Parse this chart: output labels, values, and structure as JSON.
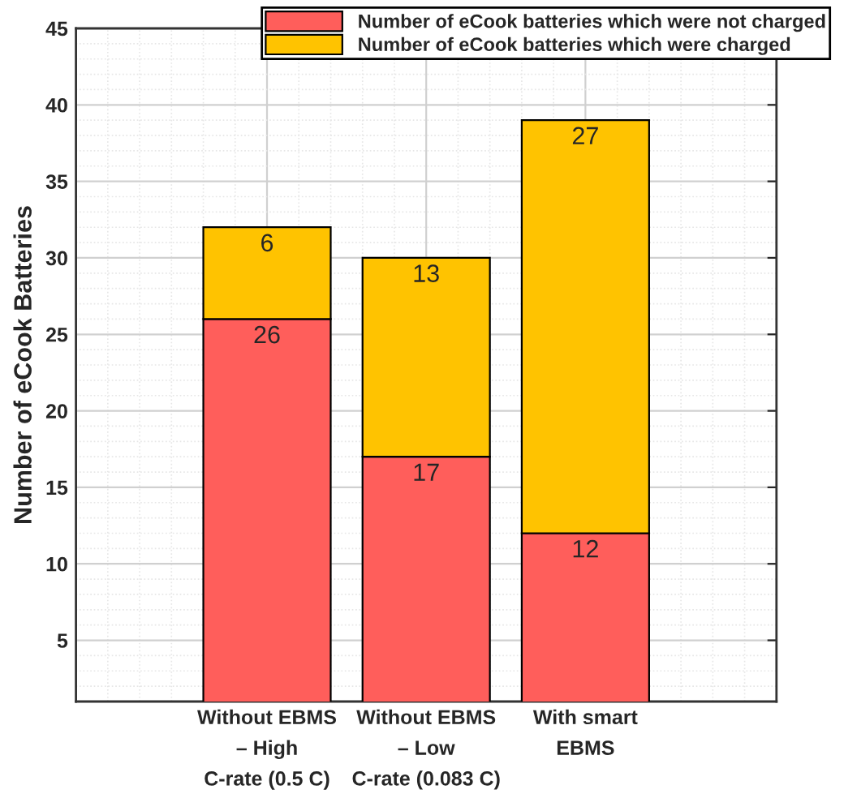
{
  "chart_data": {
    "type": "bar",
    "stacked": true,
    "ylabel": "Number of eCook Batteries",
    "categories": [
      "Without EBMS\n– High\nC-rate (0.5 C)",
      "Without EBMS\n– Low\nC-rate (0.083 C)",
      "With smart\nEBMS"
    ],
    "series": [
      {
        "name": "Number of eCook batteries which were not charged",
        "color": "#ff5e5b",
        "values": [
          26,
          17,
          12
        ]
      },
      {
        "name": "Number of eCook batteries which were charged",
        "color": "#ffc300",
        "values": [
          6,
          13,
          27
        ]
      }
    ],
    "ylim": [
      1,
      45
    ],
    "yticks": [
      5,
      10,
      15,
      20,
      25,
      30,
      35,
      40,
      45
    ],
    "grid": true,
    "legend": "top right",
    "data_labels": true
  }
}
